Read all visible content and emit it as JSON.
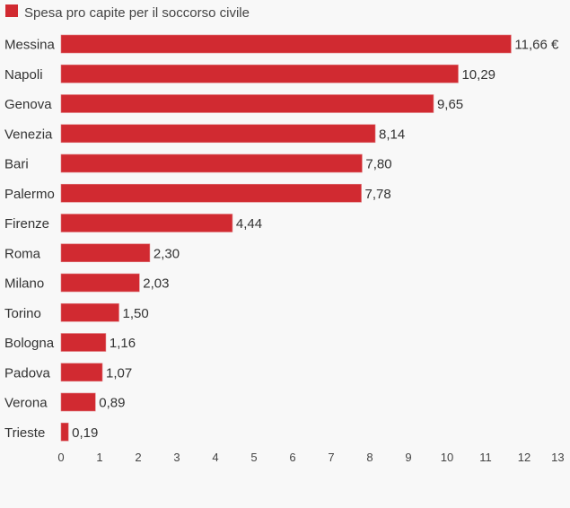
{
  "chart_data": {
    "type": "bar",
    "orientation": "horizontal",
    "title": "",
    "legend": {
      "label": "Spesa pro capite per il soccorso civile",
      "position": "top-left"
    },
    "categories": [
      "Messina",
      "Napoli",
      "Genova",
      "Venezia",
      "Bari",
      "Palermo",
      "Firenze",
      "Roma",
      "Milano",
      "Torino",
      "Bologna",
      "Padova",
      "Verona",
      "Trieste"
    ],
    "values": [
      11.66,
      10.29,
      9.65,
      8.14,
      7.8,
      7.78,
      4.44,
      2.3,
      2.03,
      1.5,
      1.16,
      1.07,
      0.89,
      0.19
    ],
    "value_labels": [
      "11,66 €",
      "10,29",
      "9,65",
      "8,14",
      "7,80",
      "7,78",
      "4,44",
      "2,30",
      "2,03",
      "1,50",
      "1,16",
      "1,07",
      "0,89",
      "0,19"
    ],
    "xlim": [
      0,
      13
    ],
    "xticks": [
      "0",
      "1",
      "2",
      "3",
      "4",
      "5",
      "6",
      "7",
      "8",
      "9",
      "10",
      "11",
      "12",
      "13"
    ],
    "grid": false,
    "color": "#d12a31"
  }
}
